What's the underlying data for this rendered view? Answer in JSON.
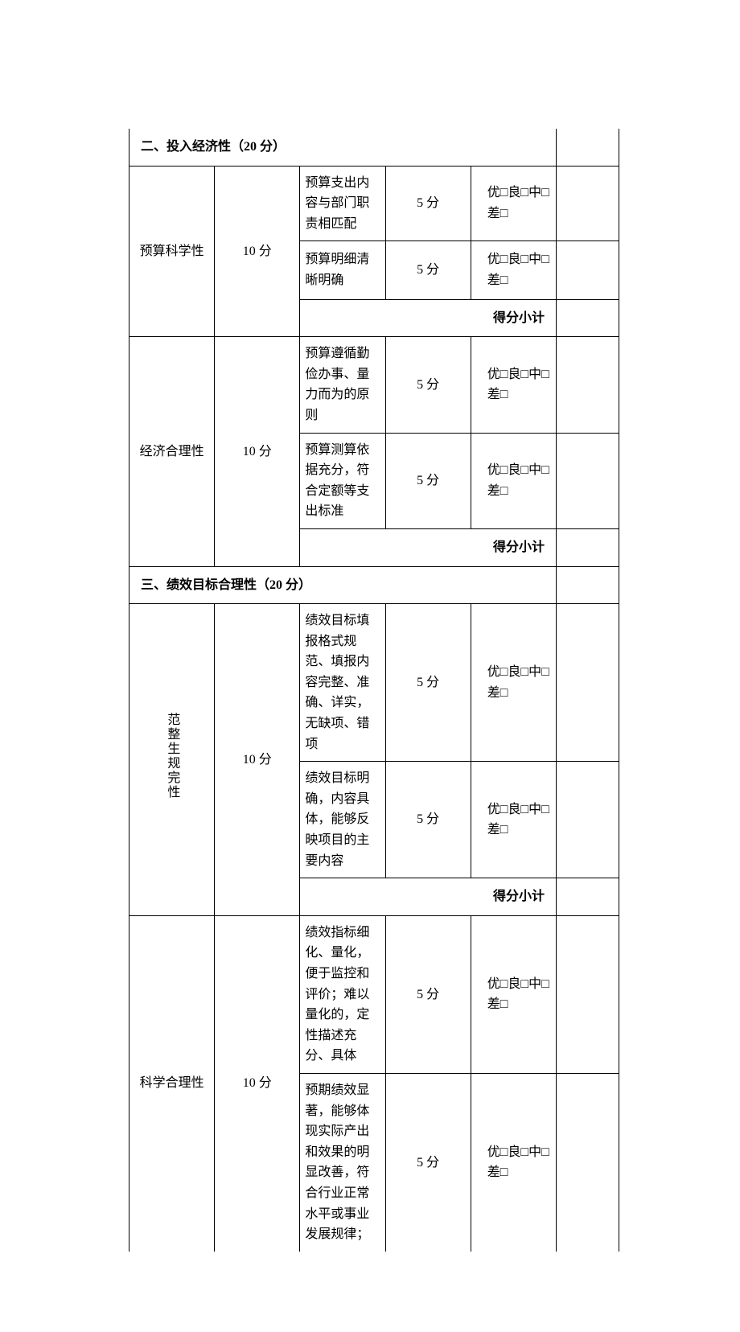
{
  "table": {
    "border_color": "#000000",
    "font_family": "SimSun",
    "base_font_size": 16,
    "background_color": "#ffffff",
    "columns": {
      "category_width": 58,
      "score_width": 48,
      "desc_width": 168,
      "points_width": 54,
      "rating_width": 184,
      "last_width": 78
    },
    "sections": [
      {
        "header": "二、投入经济性（20 分）",
        "groups": [
          {
            "category": "预算科学性",
            "total_score": "10 分",
            "rows": [
              {
                "desc": "预算支出内容与部门职责相匹配",
                "points": "5 分",
                "rating": "优□良□中□差□"
              },
              {
                "desc": "预算明细清晰明确",
                "points": "5 分",
                "rating": "优□良□中□差□"
              }
            ],
            "subtotal": "得分小计"
          },
          {
            "category": "经济合理性",
            "total_score": "10 分",
            "rows": [
              {
                "desc": "预算遵循勤俭办事、量力而为的原则",
                "points": "5 分",
                "rating": "优□良□中□差□"
              },
              {
                "desc": "预算测算依据充分，符合定额等支出标准",
                "points": "5 分",
                "rating": "优□良□中□差□"
              }
            ],
            "subtotal": "得分小计"
          }
        ]
      },
      {
        "header": "三、绩效目标合理性（20 分）",
        "groups": [
          {
            "category": "范整生规完性",
            "category_vertical": true,
            "total_score": "10 分",
            "rows": [
              {
                "desc": "绩效目标填报格式规范、填报内容完整、准确、详实，无缺项、错项",
                "points": "5 分",
                "rating": "优□良□中□差□"
              },
              {
                "desc": "绩效目标明确，内容具体，能够反映项目的主要内容",
                "points": "5 分",
                "rating": "优□良□中□差□"
              }
            ],
            "subtotal": "得分小计"
          },
          {
            "category": "科学合理性",
            "total_score": "10 分",
            "rows": [
              {
                "desc": "绩效指标细化、量化，便于监控和评价；难以量化的，定性描述充分、具体",
                "points": "5 分",
                "rating": "优□良□中□差□"
              },
              {
                "desc": "预期绩效显著，能够体现实际产出和效果的明显改善，符合行业正常水平或事业发展规律；",
                "points": "5 分",
                "rating": "优□良□中□差□"
              }
            ],
            "subtotal": null
          }
        ]
      }
    ]
  }
}
